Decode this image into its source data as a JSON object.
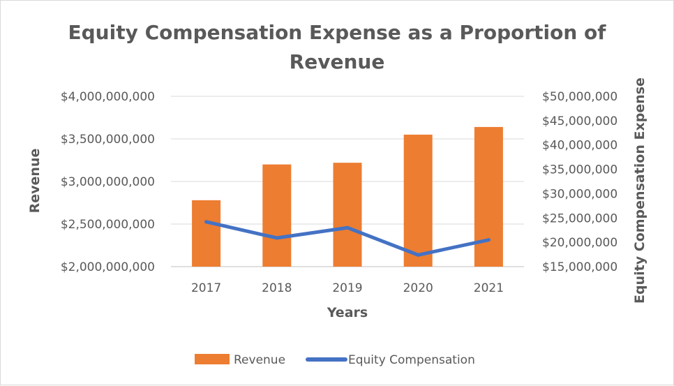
{
  "chart_data": {
    "type": "bar",
    "title_lines": [
      "Equity Compensation Expense as a Proportion of",
      "Revenue"
    ],
    "xlabel": "Years",
    "ylabel": "Revenue",
    "y2label": "Equity Compensation Expense",
    "categories": [
      "2017",
      "2018",
      "2019",
      "2020",
      "2021"
    ],
    "ylim": [
      2000000000,
      4000000000
    ],
    "y_ticks": [
      "$2,000,000,000",
      "$2,500,000,000",
      "$3,000,000,000",
      "$3,500,000,000",
      "$4,000,000,000"
    ],
    "y_tick_values": [
      2000000000,
      2500000000,
      3000000000,
      3500000000,
      4000000000
    ],
    "y2lim": [
      15000000,
      50000000
    ],
    "y2_ticks": [
      "$15,000,000",
      "$20,000,000",
      "$25,000,000",
      "$30,000,000",
      "$35,000,000",
      "$40,000,000",
      "$45,000,000",
      "$50,000,000"
    ],
    "y2_tick_values": [
      15000000,
      20000000,
      25000000,
      30000000,
      35000000,
      40000000,
      45000000,
      50000000
    ],
    "grid": true,
    "legend_position": "bottom",
    "series": [
      {
        "name": "Revenue",
        "type": "bar",
        "axis": "left",
        "color": "#ED7D31",
        "values": [
          2780000000,
          3200000000,
          3220000000,
          3550000000,
          3640000000
        ]
      },
      {
        "name": "Equity Compensation",
        "type": "line",
        "axis": "right",
        "color": "#4472C4",
        "values": [
          24200000,
          20900000,
          23000000,
          17400000,
          20500000
        ]
      }
    ]
  }
}
